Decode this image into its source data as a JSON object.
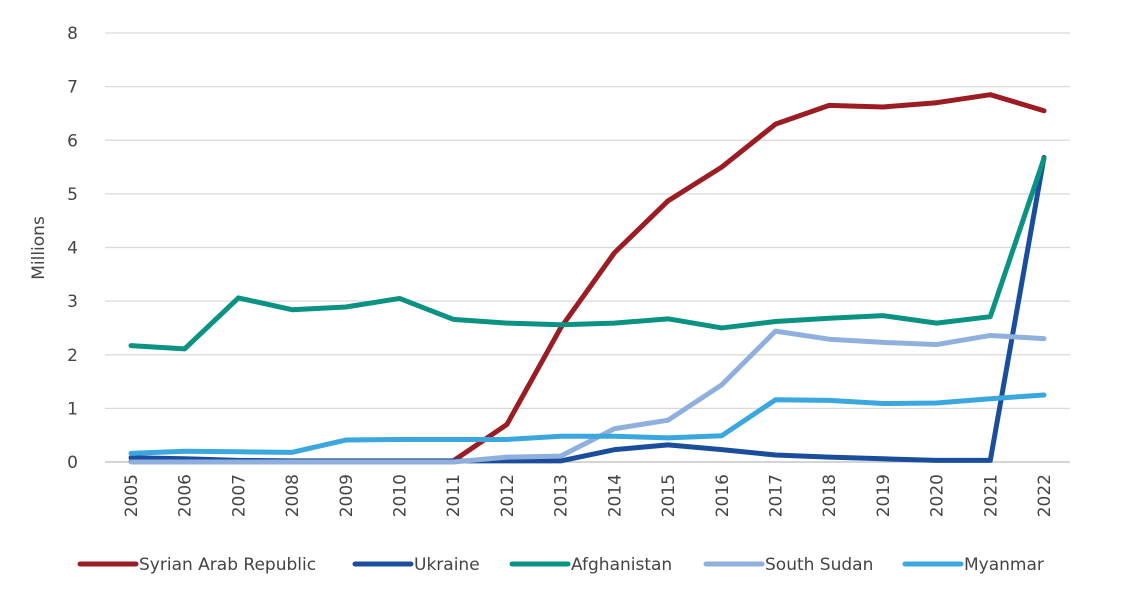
{
  "chart_data": {
    "type": "line",
    "xlabel": "",
    "ylabel": "Millions",
    "ylim": [
      0,
      8
    ],
    "yticks": [
      "0",
      "1",
      "2",
      "3",
      "4",
      "5",
      "6",
      "7",
      "8"
    ],
    "grid": true,
    "legend_position": "bottom",
    "categories": [
      "2005",
      "2006",
      "2007",
      "2008",
      "2009",
      "2010",
      "2011",
      "2012",
      "2013",
      "2014",
      "2015",
      "2016",
      "2017",
      "2018",
      "2019",
      "2020",
      "2021",
      "2022"
    ],
    "series": [
      {
        "name": "Syrian Arab Republic",
        "color": "#9b1c22",
        "values": [
          0.01,
          0.01,
          0.01,
          0.01,
          0.01,
          0.01,
          0.02,
          0.7,
          2.5,
          3.9,
          4.87,
          5.5,
          6.3,
          6.65,
          6.62,
          6.7,
          6.85,
          6.55
        ]
      },
      {
        "name": "Ukraine",
        "color": "#1a4e9c",
        "values": [
          0.08,
          0.06,
          0.03,
          0.02,
          0.02,
          0.02,
          0.02,
          0.02,
          0.02,
          0.23,
          0.32,
          0.23,
          0.13,
          0.09,
          0.06,
          0.03,
          0.03,
          5.68
        ]
      },
      {
        "name": "Afghanistan",
        "color": "#0a9282",
        "values": [
          2.17,
          2.11,
          3.06,
          2.84,
          2.89,
          3.05,
          2.66,
          2.59,
          2.56,
          2.59,
          2.67,
          2.5,
          2.62,
          2.68,
          2.73,
          2.59,
          2.71,
          5.66
        ]
      },
      {
        "name": "South Sudan",
        "color": "#8fb0dd",
        "values": [
          0,
          0,
          0,
          0,
          0,
          0,
          0,
          0.09,
          0.11,
          0.62,
          0.78,
          1.44,
          2.44,
          2.29,
          2.23,
          2.19,
          2.36,
          2.3
        ]
      },
      {
        "name": "Myanmar",
        "color": "#3aa7de",
        "values": [
          0.16,
          0.2,
          0.19,
          0.18,
          0.41,
          0.42,
          0.42,
          0.42,
          0.48,
          0.48,
          0.45,
          0.49,
          1.16,
          1.15,
          1.09,
          1.1,
          1.18,
          1.25
        ]
      }
    ]
  }
}
